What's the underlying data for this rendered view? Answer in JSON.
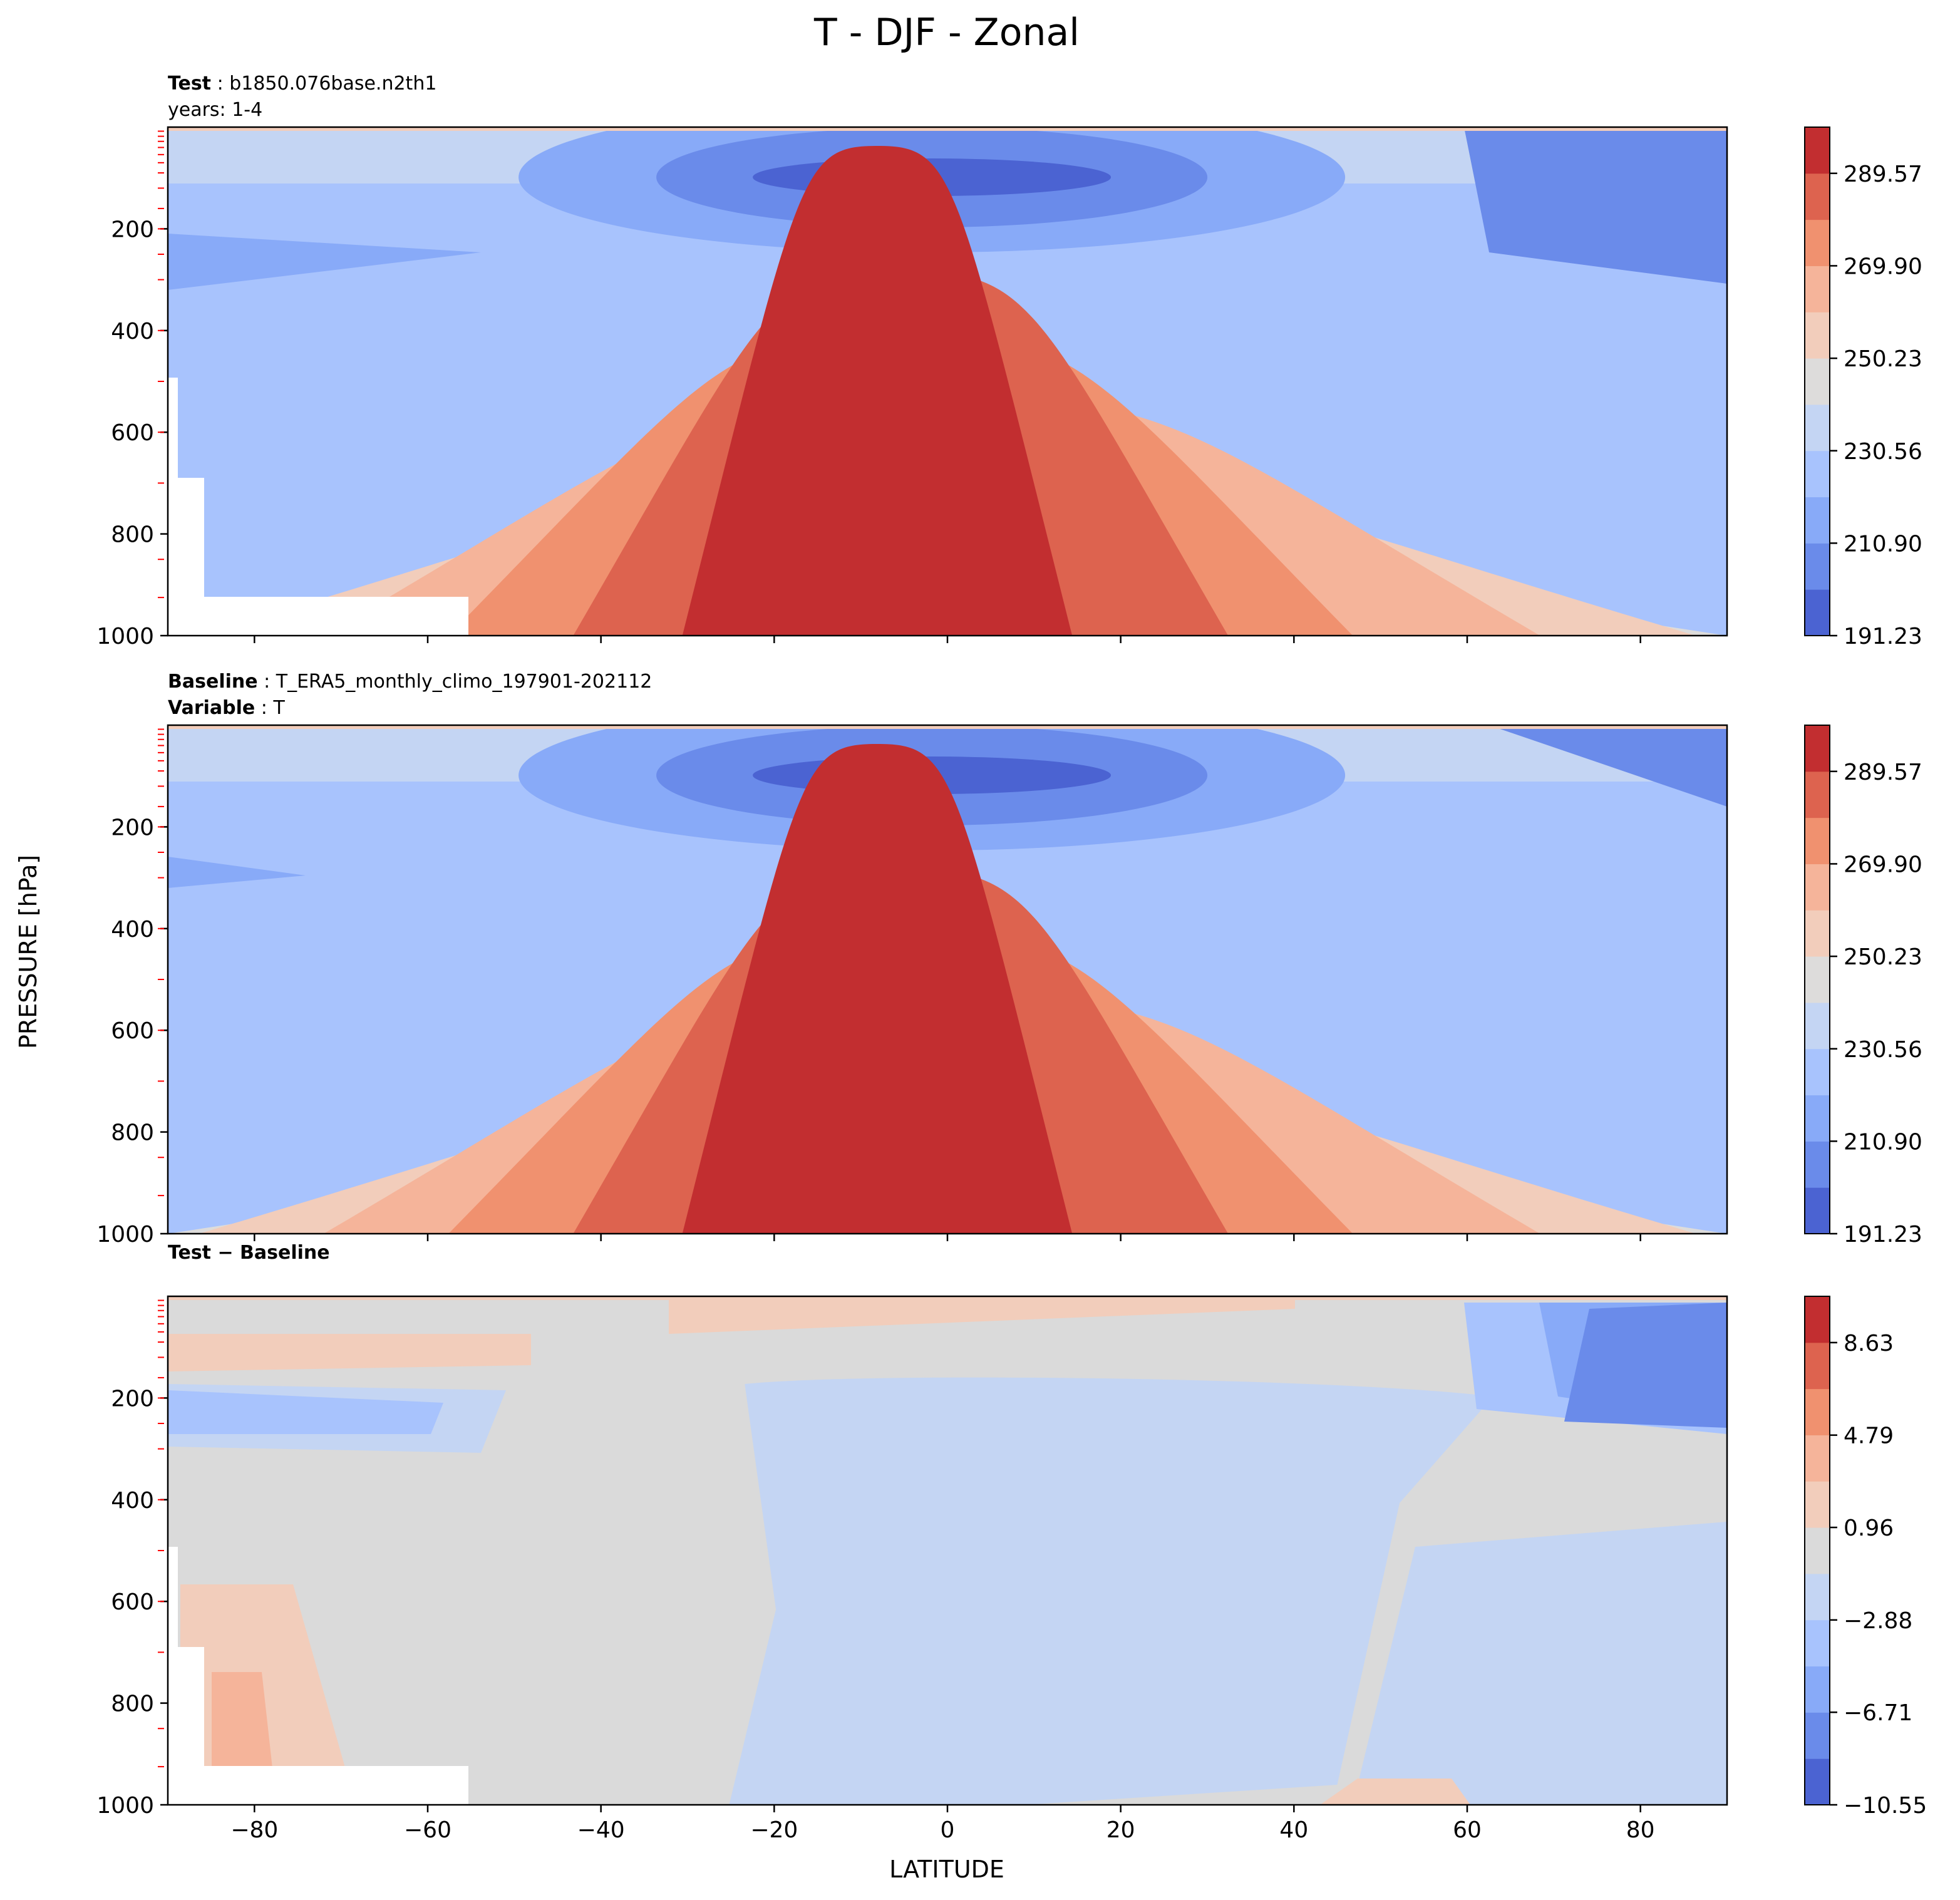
{
  "figure": {
    "title": "T - DJF - Zonal",
    "ylabel": "PRESSURE [hPa]",
    "xlabel": "LATITUDE"
  },
  "panels": [
    {
      "id": "test",
      "header": [
        {
          "bold": "Test",
          "sep": " : ",
          "text": "b1850.076base.n2th1"
        },
        {
          "bold": "",
          "sep": "",
          "text": "years: 1-4"
        }
      ]
    },
    {
      "id": "baseline",
      "header": [
        {
          "bold": "Baseline",
          "sep": " : ",
          "text": "T_ERA5_monthly_climo_197901-202112"
        },
        {
          "bold": "Variable",
          "sep": " : ",
          "text": "T"
        }
      ]
    },
    {
      "id": "diff",
      "header": [
        {
          "bold": "Test − Baseline",
          "sep": "",
          "text": ""
        }
      ]
    }
  ],
  "colors": {
    "t_levels": [
      "#4b63d2",
      "#6a8bea",
      "#88aaf8",
      "#a8c3fd",
      "#c4d5f3",
      "#dddcdb",
      "#f2cdbb",
      "#f5b49a",
      "#f0916f",
      "#dd634f",
      "#c22e30"
    ],
    "d_levels": [
      "#4b63d2",
      "#6a8bea",
      "#88aaf8",
      "#a8c3fd",
      "#c4d5f3",
      "#dadada",
      "#f2cdbb",
      "#f5b49a",
      "#f0916f",
      "#dd634f",
      "#c22e30"
    ],
    "missing": "#ffffff",
    "tick_red": "#ff0000"
  },
  "chart_data": [
    {
      "type": "heatmap",
      "panel": "test",
      "x_range": [
        -90,
        90
      ],
      "y_range": [
        1000,
        0
      ],
      "x_ticks": [
        "−80",
        "−60",
        "−40",
        "−20",
        "0",
        "20",
        "40",
        "60",
        "80"
      ],
      "x_ticks_shown": false,
      "y_ticks": [
        "200",
        "400",
        "600",
        "800",
        "1000"
      ],
      "colorbar_ticks": [
        "191.23",
        "210.90",
        "230.56",
        "250.23",
        "269.90",
        "289.57"
      ],
      "colorbar_range": [
        191.23,
        299.4
      ]
    },
    {
      "type": "heatmap",
      "panel": "baseline",
      "x_range": [
        -90,
        90
      ],
      "y_range": [
        1000,
        0
      ],
      "x_ticks": [
        "−80",
        "−60",
        "−40",
        "−20",
        "0",
        "20",
        "40",
        "60",
        "80"
      ],
      "x_ticks_shown": false,
      "y_ticks": [
        "200",
        "400",
        "600",
        "800",
        "1000"
      ],
      "colorbar_ticks": [
        "191.23",
        "210.90",
        "230.56",
        "250.23",
        "269.90",
        "289.57"
      ],
      "colorbar_range": [
        191.23,
        299.4
      ]
    },
    {
      "type": "heatmap",
      "panel": "diff",
      "x_range": [
        -90,
        90
      ],
      "y_range": [
        1000,
        0
      ],
      "x_ticks": [
        "−80",
        "−60",
        "−40",
        "−20",
        "0",
        "20",
        "40",
        "60",
        "80"
      ],
      "x_ticks_shown": true,
      "y_ticks": [
        "200",
        "400",
        "600",
        "800",
        "1000"
      ],
      "colorbar_ticks": [
        "−10.55",
        "−6.71",
        "−2.88",
        "0.96",
        "4.79",
        "8.63"
      ],
      "colorbar_range": [
        -10.55,
        10.55
      ]
    }
  ]
}
